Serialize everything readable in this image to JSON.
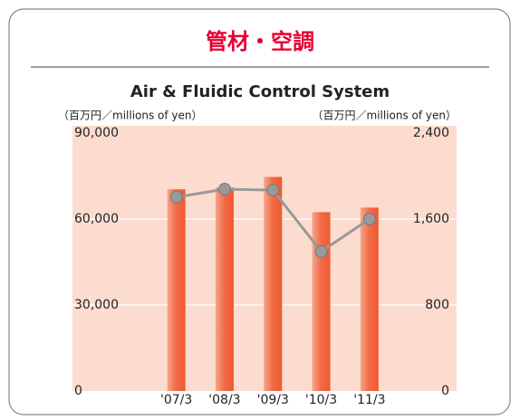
{
  "chart_data": {
    "type": "bar",
    "heading": "管材・空調",
    "title": "Air & Fluidic Control System",
    "y_label": "（百万円／millions of yen）",
    "y2_label": "（百万円／millions of yen）",
    "categories": [
      "'07/3",
      "'08/3",
      "'09/3",
      "'10/3",
      "'11/3"
    ],
    "series": [
      {
        "type": "bar",
        "color": "#f05a32",
        "values": [
          70400,
          71000,
          74700,
          62400,
          64000
        ]
      },
      {
        "type": "line",
        "axis": "y2",
        "color": "#999999",
        "values": [
          1804,
          1878,
          1869,
          1298,
          1600
        ]
      }
    ],
    "ylim": [
      0,
      90000
    ],
    "yticks": [
      0,
      {
        "value": 30000,
        "label": "30,000"
      },
      {
        "value": 60000,
        "label": "60,000"
      },
      {
        "value": 90000,
        "label": "90,000"
      }
    ],
    "y2lim": [
      0,
      2400
    ],
    "y2ticks": [
      0,
      800,
      {
        "value": 1600,
        "label": "1,600"
      },
      {
        "value": 2400,
        "label": "2,400"
      }
    ],
    "grid": true
  }
}
